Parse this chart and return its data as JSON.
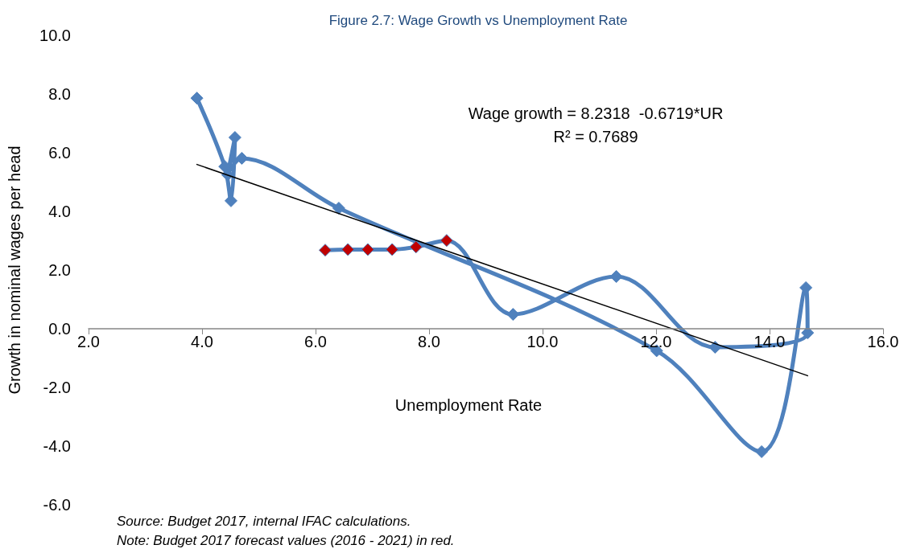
{
  "chart_data": {
    "type": "line",
    "title": "Figure 2.7: Wage Growth vs Unemployment Rate",
    "xlabel": "Unemployment Rate",
    "ylabel": "Growth in nominal wages per head",
    "series": [
      {
        "color": "#4f81bd",
        "marker": "diamond",
        "line_style": "solid",
        "x": [
          3.91,
          4.4,
          4.51,
          4.58,
          4.45,
          4.7,
          6.41,
          12.01,
          13.86,
          14.64,
          14.67,
          13.04,
          11.3,
          9.48,
          8.31,
          7.77,
          7.35,
          6.92,
          6.57,
          6.17
        ],
        "values": [
          7.86,
          5.53,
          4.36,
          6.52,
          5.25,
          5.81,
          4.11,
          -0.75,
          -4.19,
          1.4,
          -0.14,
          -0.63,
          1.78,
          0.49,
          3.01,
          2.79,
          2.7,
          2.7,
          2.7,
          2.68
        ],
        "colors": [
          "#4f81bd",
          "#4f81bd",
          "#4f81bd",
          "#4f81bd",
          "#4f81bd",
          "#4f81bd",
          "#4f81bd",
          "#4f81bd",
          "#4f81bd",
          "#4f81bd",
          "#4f81bd",
          "#4f81bd",
          "#4f81bd",
          "#4f81bd",
          "#c00000",
          "#c00000",
          "#c00000",
          "#c00000",
          "#c00000",
          "#c00000"
        ]
      },
      {
        "color": "#000000",
        "marker": "none",
        "line_style": "solid",
        "x": [
          3.91,
          14.67
        ],
        "values": [
          5.6,
          -1.6
        ]
      }
    ],
    "xlim": [
      2,
      16
    ],
    "xticks": [
      {
        "value": 2,
        "label": "2.0"
      },
      {
        "value": 4,
        "label": "4.0"
      },
      {
        "value": 6,
        "label": "6.0"
      },
      {
        "value": 8,
        "label": "8.0"
      },
      {
        "value": 10,
        "label": "10.0"
      },
      {
        "value": 12,
        "label": "12.0"
      },
      {
        "value": 14,
        "label": "14.0"
      },
      {
        "value": 16,
        "label": "16.0"
      }
    ],
    "ylim": [
      -6,
      10
    ],
    "yticks": [
      {
        "value": -6,
        "label": "-6.0"
      },
      {
        "value": -4,
        "label": "-4.0"
      },
      {
        "value": -2,
        "label": "-2.0"
      },
      {
        "value": 0,
        "label": "0.0"
      },
      {
        "value": 2,
        "label": "2.0"
      },
      {
        "value": 4,
        "label": "4.0"
      },
      {
        "value": 6,
        "label": "6.0"
      },
      {
        "value": 8,
        "label": "8.0"
      },
      {
        "value": 10,
        "label": "10.0"
      }
    ],
    "annotations": [
      "Wage growth = 8.2318  -0.6719*UR",
      "R² = 0.7689",
      "Source: Budget 2017, internal IFAC calculations.",
      "Note: Budget 2017 forecast values (2016 - 2021) in red."
    ]
  }
}
